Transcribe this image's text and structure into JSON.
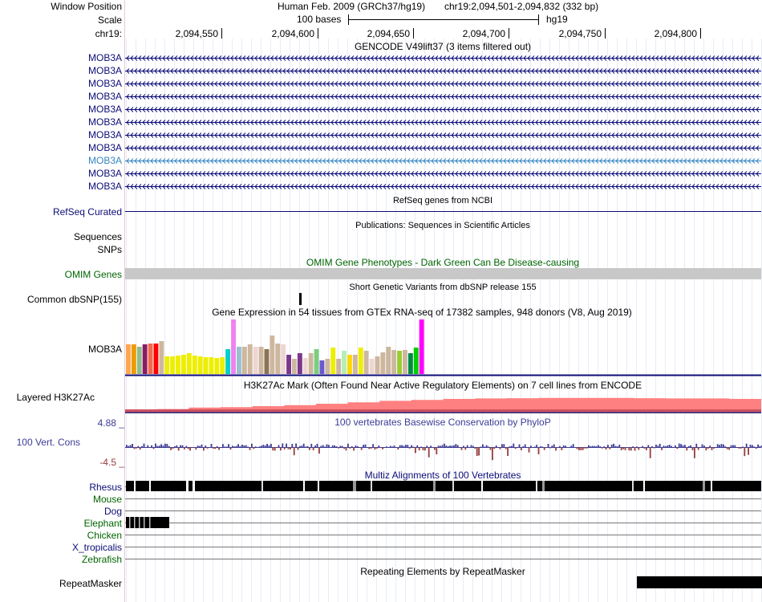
{
  "header": {
    "window_position_label": "Window Position",
    "scale_label": "Scale",
    "chrom_label": "chr19:",
    "assembly": "Human Feb. 2009 (GRCh37/hg19)",
    "position": "chr19:2,094,501-2,094,832 (332 bp)",
    "scale_text": "100 bases",
    "scale_db": "hg19",
    "ruler_ticks": [
      "2,094,550",
      "2,094,600",
      "2,094,650",
      "2,094,700",
      "2,094,750",
      "2,094,800"
    ]
  },
  "gencode": {
    "title": "GENCODE V49lift37 (3 items filtered out)",
    "transcripts": [
      "MOB3A",
      "MOB3A",
      "MOB3A",
      "MOB3A",
      "MOB3A",
      "MOB3A",
      "MOB3A",
      "MOB3A",
      "MOB3A",
      "MOB3A",
      "MOB3A"
    ],
    "highlighted_index": 8,
    "colors": {
      "normal": "#0c0c78",
      "highlight": "#3586c1"
    }
  },
  "refseq": {
    "title": "RefSeq genes from NCBI",
    "label": "RefSeq Curated",
    "color": "#0c0c78"
  },
  "publications": {
    "title": "Publications: Sequences in Scientific Articles",
    "labels": [
      "Sequences",
      "SNPs"
    ]
  },
  "omim": {
    "title": "OMIM Gene Phenotypes - Dark Green Can Be Disease-causing",
    "label": "OMIM Genes",
    "color": "#006400",
    "bar_color": "#c8c8c8"
  },
  "dbsnp": {
    "title": "Short Genetic Variants from dbSNP release 155",
    "label": "Common dbSNP(155)"
  },
  "gtex": {
    "title": "Gene Expression in 54 tissues from GTEx RNA-seq of 17382 samples, 948 donors (V8, Aug 2019)",
    "label": "MOB3A",
    "values": [
      0.54,
      0.54,
      0.5,
      0.54,
      0.56,
      0.56,
      0.6,
      0.32,
      0.32,
      0.34,
      0.36,
      0.38,
      0.34,
      0.32,
      0.31,
      0.31,
      0.3,
      0.31,
      0.45,
      1.0,
      0.5,
      0.5,
      0.54,
      0.5,
      0.5,
      0.46,
      0.7,
      0.56,
      0.54,
      0.36,
      0.28,
      0.38,
      0.3,
      0.38,
      0.46,
      0.25,
      0.28,
      0.48,
      0.28,
      0.42,
      0.36,
      0.36,
      0.48,
      0.42,
      0.28,
      0.32,
      0.4,
      0.5,
      0.44,
      0.42,
      0.44,
      0.38,
      0.48,
      1.0
    ],
    "colors": [
      "#ffa54f",
      "#ee9a00",
      "#8fbc8f",
      "#8b1c62",
      "#ee6a50",
      "#ff0000",
      "#cdb79e",
      "#eeee00",
      "#eeee00",
      "#eeee00",
      "#eeee00",
      "#eeee00",
      "#eeee00",
      "#eeee00",
      "#eeee00",
      "#eeee00",
      "#eeee00",
      "#eeee00",
      "#00cdcd",
      "#ee82ee",
      "#9ac0cd",
      "#cdb79e",
      "#cdb79e",
      "#eed5d2",
      "#cdb79e",
      "#8b7355",
      "#cdb79e",
      "#cdb79e",
      "#eed5d2",
      "#7a378b",
      "#cdb79e",
      "#7a378b",
      "#eed5d2",
      "#cdb79e",
      "#7ccd7c",
      "#6a5acd",
      "#cdb79e",
      "#eeee00",
      "#cdb79e",
      "#b4eeb4",
      "#ffd700",
      "#cdb79e",
      "#eeee00",
      "#cdb79e",
      "#eed5d2",
      "#cdb79e",
      "#cdb79e",
      "#cdb79e",
      "#cdb79e",
      "#9acd32",
      "#cdb79e",
      "#008b45",
      "#00cd00",
      "#ff00ff"
    ]
  },
  "h3k27ac": {
    "title": "H3K27Ac Mark (Often Found Near Active Regulatory Elements) on 7 cell lines from ENCODE",
    "label": "Layered H3K27Ac",
    "fill_color": "#ff8080",
    "signal": [
      0.14,
      0.18,
      0.24,
      0.26,
      0.3,
      0.34,
      0.4,
      0.46,
      0.52,
      0.56,
      0.6,
      0.62,
      0.63,
      0.64,
      0.64,
      0.64,
      0.63,
      0.62,
      0.62,
      0.6
    ]
  },
  "phylop": {
    "title": "100 vertebrates Basewise Conservation by PhyloP",
    "label": "100 Vert. Cons",
    "max_label": "4.88 _",
    "min_label": "-4.5 _",
    "pos_color": "#3c3c96",
    "neg_color": "#963c3c",
    "range": [
      -4.5,
      4.88
    ]
  },
  "multiz": {
    "title": "Multiz Alignments of 100 Vertebrates",
    "species": [
      {
        "name": "Rhesus",
        "color": "#0c0c78"
      },
      {
        "name": "Mouse",
        "color": "#006400"
      },
      {
        "name": "Dog",
        "color": "#0c0c78"
      },
      {
        "name": "Elephant",
        "color": "#006400"
      },
      {
        "name": "Chicken",
        "color": "#006400"
      },
      {
        "name": "X_tropicalis",
        "color": "#0c0c78"
      },
      {
        "name": "Zebrafish",
        "color": "#006400"
      }
    ]
  },
  "repeatmasker": {
    "title": "Repeating Elements by RepeatMasker",
    "label": "RepeatMasker"
  }
}
